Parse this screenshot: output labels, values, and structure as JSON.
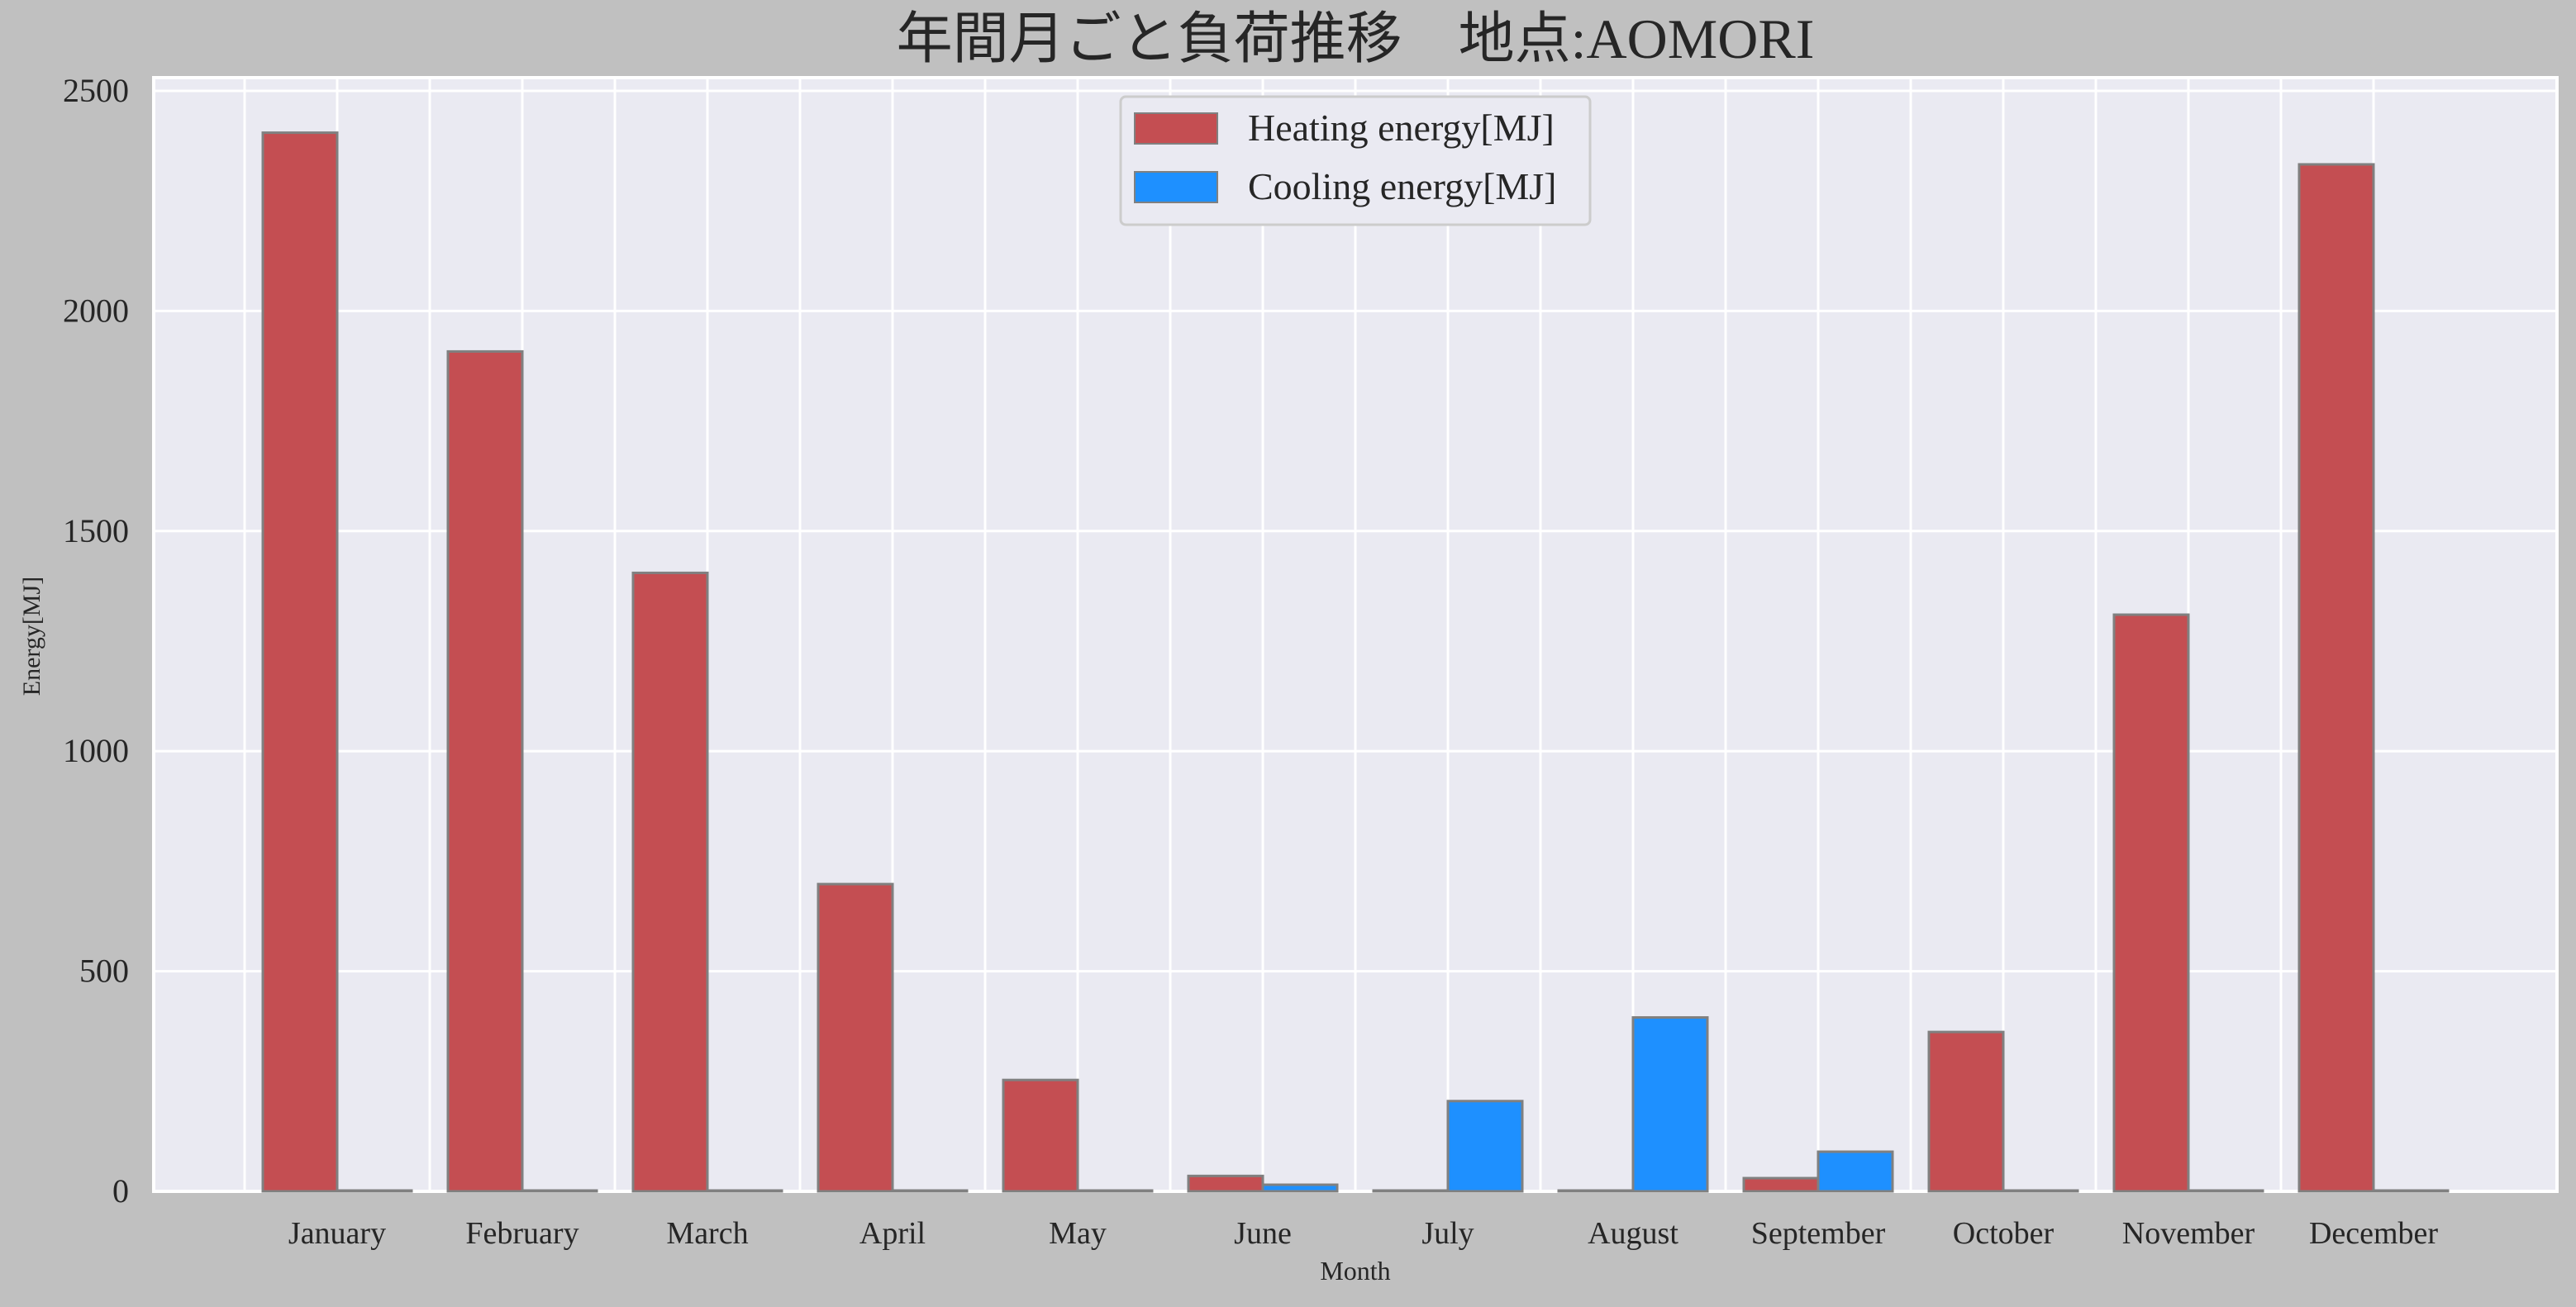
{
  "chart_data": {
    "type": "bar",
    "title": "年間月ごと負荷推移　地点:AOMORI",
    "xlabel": "Month",
    "ylabel": "Energy[MJ]",
    "ylim": [
      0,
      2530
    ],
    "yticks": [
      0,
      500,
      1000,
      1500,
      2000,
      2500
    ],
    "grid": true,
    "legend_position": "top-center",
    "categories": [
      "January",
      "February",
      "March",
      "April",
      "May",
      "June",
      "July",
      "August",
      "September",
      "October",
      "November",
      "December"
    ],
    "series": [
      {
        "name": "Heating energy[MJ]",
        "color": "#c44e52",
        "values": [
          2405,
          1908,
          1405,
          698,
          253,
          35,
          0,
          0,
          30,
          362,
          1310,
          2333
        ]
      },
      {
        "name": "Cooling energy[MJ]",
        "color": "#1e90ff",
        "values": [
          0,
          0,
          0,
          0,
          0,
          15,
          205,
          395,
          90,
          0,
          0,
          0
        ]
      }
    ]
  }
}
